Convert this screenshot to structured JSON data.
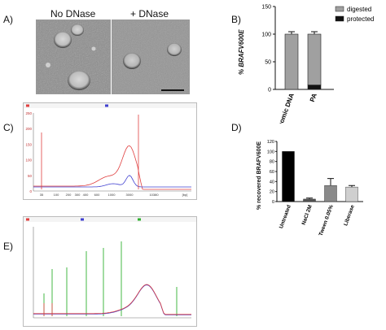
{
  "panels": {
    "A": {
      "letter": "A)",
      "label_left": "No DNase",
      "label_right": "+ DNase"
    },
    "B": {
      "letter": "B)",
      "legend": [
        "digested",
        "protected"
      ],
      "legend_colors": [
        "#a0a0a0",
        "#111111"
      ],
      "ylabel": "% BRAFV600E"
    },
    "C": {
      "letter": "C)"
    },
    "D": {
      "letter": "D)",
      "ylabel": "% recovered BRAFV600E"
    },
    "E": {
      "letter": "E)"
    }
  },
  "chart_data": [
    {
      "id": "B",
      "type": "bar",
      "stacked": true,
      "categories": [
        "genomic DNA",
        "PA"
      ],
      "series": [
        {
          "name": "digested",
          "values": [
            100,
            92
          ]
        },
        {
          "name": "protected",
          "values": [
            0,
            8
          ]
        }
      ],
      "ylim": [
        0,
        150
      ],
      "yticks": [
        0,
        50,
        100,
        150
      ],
      "errors": [
        2,
        2
      ]
    },
    {
      "id": "D",
      "type": "bar",
      "categories": [
        "Untreated",
        "NaCl 2M",
        "Tween 0.05%",
        "Liberase"
      ],
      "values": [
        100,
        5,
        32,
        29
      ],
      "errors": [
        0,
        2,
        14,
        3
      ],
      "colors": [
        "#000000",
        "#555555",
        "#8a8a8a",
        "#cfcfcf"
      ],
      "ylim": [
        0,
        120
      ],
      "yticks": [
        0,
        20,
        40,
        60,
        80,
        100,
        120
      ]
    },
    {
      "id": "C",
      "type": "line",
      "x_ticks": [
        "35",
        "100",
        "200",
        "300",
        "400",
        "600",
        "1000",
        "3000",
        "10380",
        "[bp]"
      ],
      "y_ticks": [
        "0",
        "50",
        "100",
        "150",
        "200",
        "250"
      ],
      "series_colors": [
        "#e04040",
        "#4040d0"
      ]
    },
    {
      "id": "E",
      "type": "line",
      "series_colors": [
        "#30b030",
        "#4040d0",
        "#e04040"
      ]
    }
  ]
}
